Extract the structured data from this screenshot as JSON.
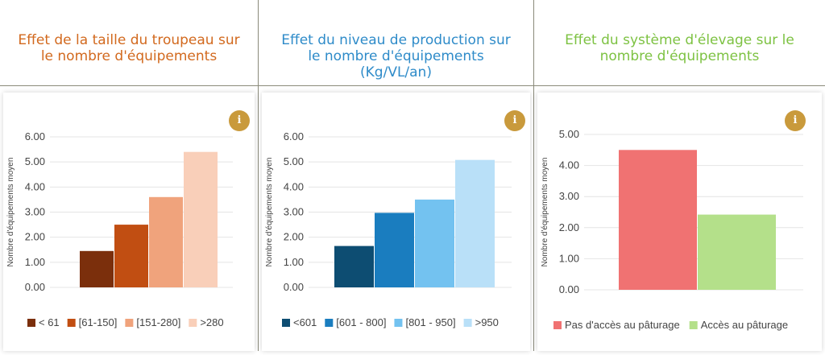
{
  "colors": {
    "info_icon": "#c99a3c",
    "separator": "#8a8a7a"
  },
  "info_icon_glyph": "i",
  "panels": [
    {
      "title_lines": [
        "Effet de la taille du troupeau sur",
        "le nombre d'équipements"
      ],
      "title_color": "#d2691e"
    },
    {
      "title_lines": [
        "Effet du niveau de production sur",
        "le nombre d'équipements",
        "(Kg/VL/an)"
      ],
      "title_color": "#2e8bc9"
    },
    {
      "title_lines": [
        "Effet du système d'élevage sur le",
        "nombre d'équipements"
      ],
      "title_color": "#7dc242"
    }
  ],
  "chart_data": [
    {
      "type": "bar",
      "ylabel": "Nombre d'équipements moyen",
      "ylim": [
        0,
        6
      ],
      "yticks": [
        "0.00",
        "1.00",
        "2.00",
        "3.00",
        "4.00",
        "5.00",
        "6.00"
      ],
      "grid": true,
      "legend_position": "bottom",
      "series": [
        {
          "name": "< 61",
          "values": [
            1.45
          ],
          "color": "#7b2f0c"
        },
        {
          "name": "[61-150]",
          "values": [
            2.5
          ],
          "color": "#c14e12"
        },
        {
          "name": "[151-280]",
          "values": [
            3.6
          ],
          "color": "#f0a37c"
        },
        {
          "name": ">280",
          "values": [
            5.4
          ],
          "color": "#f9cfb9"
        }
      ]
    },
    {
      "type": "bar",
      "ylabel": "Nombre d'équipements moyen",
      "ylim": [
        0,
        6
      ],
      "yticks": [
        "0.00",
        "1.00",
        "2.00",
        "3.00",
        "4.00",
        "5.00",
        "6.00"
      ],
      "grid": true,
      "legend_position": "bottom",
      "series": [
        {
          "name": "<601",
          "values": [
            1.65
          ],
          "color": "#0d4d72"
        },
        {
          "name": "[601 - 800]",
          "values": [
            2.97
          ],
          "color": "#1a7dbf"
        },
        {
          "name": "[801 - 950]",
          "values": [
            3.5
          ],
          "color": "#73c2f0"
        },
        {
          "name": ">950",
          "values": [
            5.08
          ],
          "color": "#b9e0f8"
        }
      ]
    },
    {
      "type": "bar",
      "ylabel": "Nombre d'équipements moyen",
      "ylim": [
        0,
        5
      ],
      "yticks": [
        "0.00",
        "1.00",
        "2.00",
        "3.00",
        "4.00",
        "5.00"
      ],
      "grid": true,
      "legend_position": "bottom",
      "series": [
        {
          "name": "Pas d'accès au pâturage",
          "values": [
            4.5
          ],
          "color": "#f07272"
        },
        {
          "name": "Accès au pâturage",
          "values": [
            2.42
          ],
          "color": "#b4e08a"
        }
      ]
    }
  ]
}
